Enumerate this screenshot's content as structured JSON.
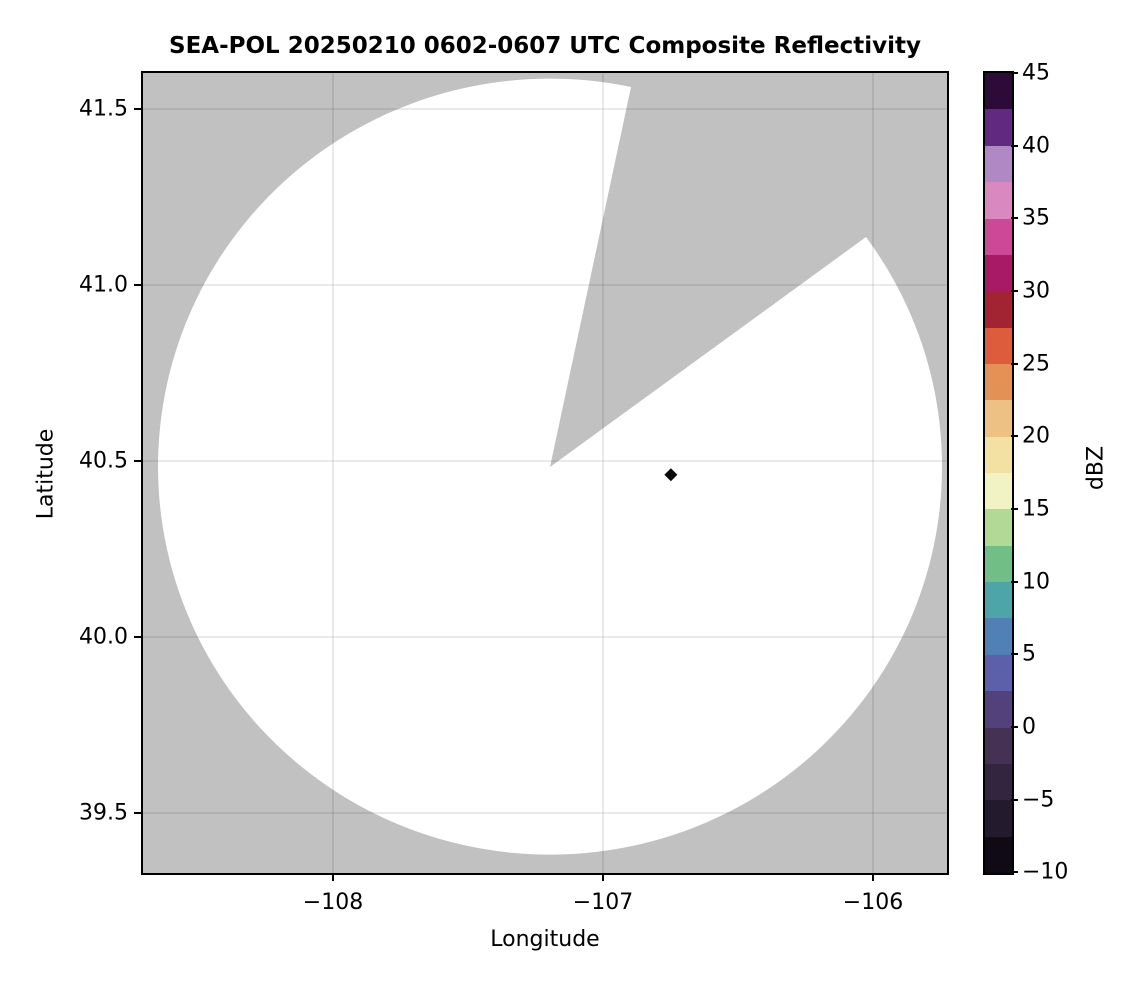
{
  "title": "SEA-POL 20250210 0602-0607 UTC Composite Reflectivity",
  "axes": {
    "xlabel": "Longitude",
    "ylabel": "Latitude",
    "x_ticks": [
      {
        "label": "−108",
        "lon": -108
      },
      {
        "label": "−107",
        "lon": -107
      },
      {
        "label": "−106",
        "lon": -106
      }
    ],
    "y_ticks": [
      {
        "label": "41.5",
        "lat": 41.5
      },
      {
        "label": "41.0",
        "lat": 41.0
      },
      {
        "label": "40.5",
        "lat": 40.5
      },
      {
        "label": "40.0",
        "lat": 40.0
      },
      {
        "label": "39.5",
        "lat": 39.5
      }
    ],
    "x_range": [
      -108.7,
      -105.73
    ],
    "y_range": [
      39.31,
      41.62
    ],
    "grid": true,
    "gridline_color": "rgba(0,0,0,0.13)"
  },
  "colorbar": {
    "label": "dBZ",
    "range": [
      -10,
      45
    ],
    "ticks": [
      "45",
      "40",
      "35",
      "30",
      "25",
      "20",
      "15",
      "10",
      "5",
      "0",
      "−5",
      "−10"
    ],
    "tick_values": [
      45,
      40,
      35,
      30,
      25,
      20,
      15,
      10,
      5,
      0,
      -5,
      -10
    ],
    "colormap_name": "spectral-extended radar colormap (black → purple-blue → teal → green → cream → orange → red → magenta → lavender → dark purple)",
    "segments": [
      {
        "from": -10.0,
        "to": -7.5,
        "color": "#0f0a14"
      },
      {
        "from": -7.5,
        "to": -5.0,
        "color": "#241a2d"
      },
      {
        "from": -5.0,
        "to": -2.5,
        "color": "#332540"
      },
      {
        "from": -2.5,
        "to": 0.0,
        "color": "#443153"
      },
      {
        "from": 0.0,
        "to": 2.5,
        "color": "#52417a"
      },
      {
        "from": 2.5,
        "to": 5.0,
        "color": "#5c60a8"
      },
      {
        "from": 5.0,
        "to": 7.5,
        "color": "#5180b6"
      },
      {
        "from": 7.5,
        "to": 10.0,
        "color": "#4da5a8"
      },
      {
        "from": 10.0,
        "to": 12.5,
        "color": "#71be86"
      },
      {
        "from": 12.5,
        "to": 15.0,
        "color": "#b2d995"
      },
      {
        "from": 15.0,
        "to": 17.5,
        "color": "#f2f3c4"
      },
      {
        "from": 17.5,
        "to": 20.0,
        "color": "#f3e1a4"
      },
      {
        "from": 20.0,
        "to": 22.5,
        "color": "#ecc183"
      },
      {
        "from": 22.5,
        "to": 25.0,
        "color": "#e49155"
      },
      {
        "from": 25.0,
        "to": 27.5,
        "color": "#dd5c3c"
      },
      {
        "from": 27.5,
        "to": 30.0,
        "color": "#a22432"
      },
      {
        "from": 30.0,
        "to": 32.5,
        "color": "#a81a64"
      },
      {
        "from": 32.5,
        "to": 35.0,
        "color": "#cd4997"
      },
      {
        "from": 35.0,
        "to": 37.5,
        "color": "#d988c0"
      },
      {
        "from": 37.5,
        "to": 40.0,
        "color": "#b088c3"
      },
      {
        "from": 40.0,
        "to": 42.5,
        "color": "#612a80"
      },
      {
        "from": 42.5,
        "to": 45.0,
        "color": "#2d0b38"
      }
    ]
  },
  "chart_data": {
    "type": "heatmap",
    "subtype": "radar composite reflectivity PPI on lon/lat map",
    "title": "SEA-POL 20250210 0602-0607 UTC Composite Reflectivity",
    "radar": {
      "name": "SEA-POL",
      "date": "20250210",
      "time_utc": "0602-0607",
      "site_lon": -107.18,
      "site_lat": 40.49
    },
    "coverage": {
      "fill_color": "#ffffff",
      "radius_deg_lon": 1.45,
      "radius_deg_lat": 1.12,
      "approx_radius_km": 123,
      "note": "white disk = scanned area with no echo; surrounding gray = no data"
    },
    "missing_sector": {
      "azimuth_start_deg": 12,
      "azimuth_end_deg": 54,
      "color": "#c1c1c1",
      "note": "blocked/unscanned wedge from radar site toward the NNE-ENE"
    },
    "echoes": [
      {
        "lon": -106.75,
        "lat": 40.46,
        "value_dbz": 45,
        "rendered": "small near-black diamond cluster"
      }
    ],
    "background_color": "#c1c1c1",
    "outside_color": "#ffffff"
  }
}
